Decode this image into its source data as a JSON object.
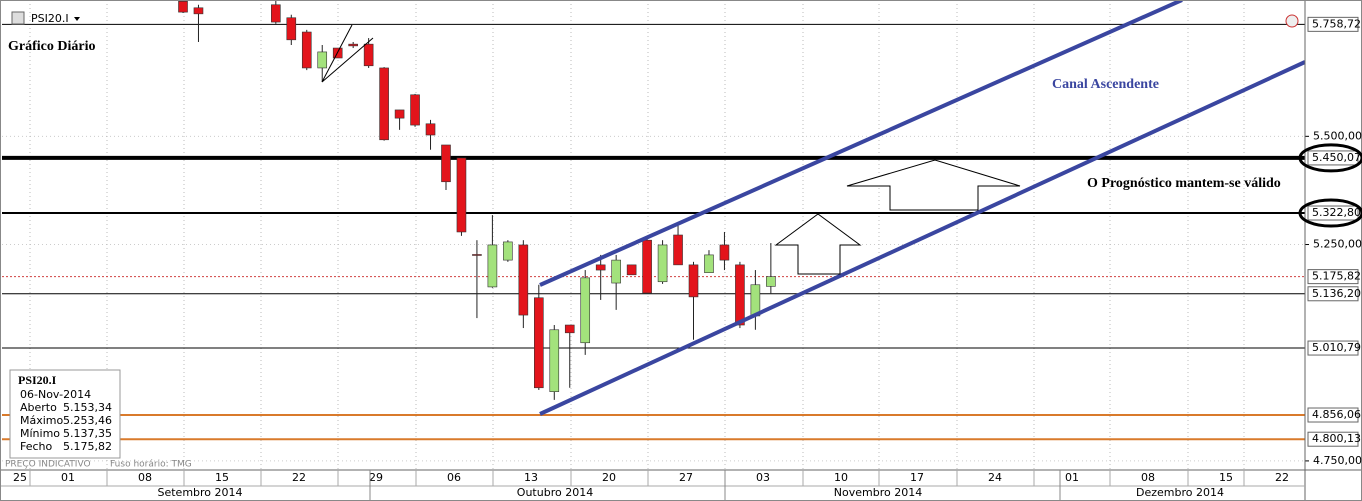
{
  "chart_data": {
    "type": "candlestick",
    "symbol": "PSI20.I",
    "title": "Gráfico Diário",
    "annotations": [
      "Canal Ascendente",
      "O Prognóstico mantem-se válido"
    ],
    "footer": "PREÇO INDICATIVO",
    "timezone": "Fuso horário: TMG",
    "categories": [
      "15-Sep-2014",
      "16-Sep-2014",
      "17-Sep-2014",
      "18-Sep-2014",
      "19-Sep-2014",
      "22-Sep-2014",
      "23-Sep-2014",
      "24-Sep-2014",
      "25-Sep-2014",
      "26-Sep-2014",
      "29-Sep-2014",
      "30-Sep-2014",
      "01-Oct-2014",
      "02-Oct-2014",
      "03-Oct-2014",
      "06-Oct-2014",
      "07-Oct-2014",
      "08-Oct-2014",
      "09-Oct-2014",
      "10-Oct-2014",
      "13-Oct-2014",
      "14-Oct-2014",
      "15-Oct-2014",
      "16-Oct-2014",
      "17-Oct-2014",
      "20-Oct-2014",
      "21-Oct-2014",
      "22-Oct-2014",
      "23-Oct-2014",
      "24-Oct-2014",
      "27-Oct-2014",
      "28-Oct-2014",
      "29-Oct-2014",
      "30-Oct-2014",
      "31-Oct-2014",
      "03-Nov-2014",
      "04-Nov-2014",
      "05-Nov-2014",
      "06-Nov-2014"
    ],
    "open": [
      5812,
      5797,
      null,
      null,
      null,
      null,
      5804,
      5774,
      5741,
      5658,
      5704,
      5713,
      5713,
      5658,
      5561,
      5596,
      5529,
      5480,
      5450,
      5227,
      5152,
      5214,
      5249,
      5127,
      4910,
      5064,
      5023,
      5203,
      5161,
      5203,
      5260,
      5164,
      5272,
      5203,
      5185,
      5249,
      5203,
      5085,
      5153.34
    ],
    "high": [
      5815,
      5804,
      null,
      null,
      null,
      null,
      5815,
      5781,
      5746,
      5711,
      5704,
      5718,
      5727,
      5660,
      5561,
      5598,
      5538,
      5480,
      5450,
      5260,
      5318,
      5260,
      5260,
      5157,
      5064,
      5064,
      5191,
      5226,
      5226,
      5203,
      5265,
      5260,
      5295,
      5210,
      5237,
      5279,
      5210,
      5191,
      5253.46
    ],
    "low": [
      5785,
      5718,
      null,
      null,
      null,
      null,
      5760,
      5711,
      5653,
      5626,
      5681,
      5704,
      5658,
      5490,
      5515,
      5522,
      5469,
      5376,
      5270,
      5080,
      5150,
      5210,
      5057,
      4914,
      4891,
      4919,
      4995,
      5122,
      5099,
      5180,
      5138,
      5159,
      5203,
      5030,
      5185,
      5191,
      5057,
      5053,
      5137.35
    ],
    "close": [
      5787,
      5783,
      null,
      null,
      null,
      null,
      5764,
      5723,
      5658,
      5695,
      5681,
      5709,
      5663,
      5492,
      5542,
      5526,
      5503,
      5395,
      5279,
      5225,
      5249,
      5256,
      5087,
      4919,
      5053,
      5046,
      5173,
      5191,
      5214,
      5180,
      5138,
      5249,
      5203,
      5129,
      5226,
      5214,
      5064,
      5157,
      5175.82
    ],
    "up_color": "#a3e27c",
    "down_color": "#e3141b",
    "ylim": [
      4729,
      5815
    ],
    "yticks": [
      {
        "value": 5500,
        "label": "5.500,00"
      },
      {
        "value": 5250,
        "label": "5.250,00"
      },
      {
        "value": 4750,
        "label": "4.750,00"
      }
    ],
    "xticks": [
      "25",
      "01",
      "08",
      "15",
      "22",
      "29",
      "06",
      "13",
      "20",
      "27",
      "03",
      "10",
      "17",
      "24",
      "01",
      "08",
      "15",
      "22"
    ],
    "months": [
      "Setembro 2014",
      "Outubro 2014",
      "Novembro 2014",
      "Dezembro 2014"
    ],
    "levels": [
      {
        "value": 5758.72,
        "label": "5.758,72",
        "color": "#000000",
        "width": 1
      },
      {
        "value": 5450.07,
        "label": "5.450,07",
        "color": "#000000",
        "width": 4,
        "circled": true
      },
      {
        "value": 5322.8,
        "label": "5.322,80",
        "color": "#000000",
        "width": 2,
        "circled": true
      },
      {
        "value": 5175.82,
        "label": "5.175,82",
        "color": "#d04040",
        "width": 1,
        "dashed": true
      },
      {
        "value": 5136.2,
        "label": "5.136,20",
        "color": "#000000",
        "width": 1
      },
      {
        "value": 5010.79,
        "label": "5.010,79",
        "color": "#000000",
        "width": 1
      },
      {
        "value": 4856.06,
        "label": "4.856,06",
        "color": "#d97a2b",
        "width": 2
      },
      {
        "value": 4800.13,
        "label": "4.800,13",
        "color": "#d97a2b",
        "width": 2
      }
    ],
    "info": {
      "symbol": "PSI20.I",
      "date": "06-Nov-2014",
      "rows": [
        {
          "label": "Aberto",
          "value": "5.153,34"
        },
        {
          "label": "Máximo",
          "value": "5.253,46"
        },
        {
          "label": "Mínimo",
          "value": "5.137,35"
        },
        {
          "label": "Fecho",
          "value": "5.175,82"
        }
      ]
    }
  }
}
